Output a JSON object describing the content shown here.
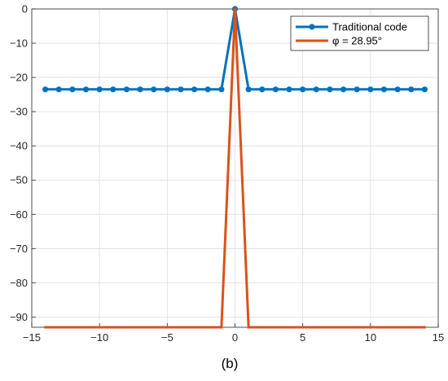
{
  "chart_data": {
    "type": "line",
    "caption": "(b)",
    "xlim": [
      -15,
      15
    ],
    "ylim": [
      -93,
      0
    ],
    "xticks": [
      -15,
      -10,
      -5,
      0,
      5,
      10,
      15
    ],
    "yticks": [
      0,
      -10,
      -20,
      -30,
      -40,
      -50,
      -60,
      -70,
      -80,
      -90
    ],
    "xtick_labels": [
      "−15",
      "−10",
      "−5",
      "0",
      "5",
      "10",
      "15"
    ],
    "ytick_labels": [
      "0",
      "−10",
      "−20",
      "−30",
      "−40",
      "−50",
      "−60",
      "−70",
      "−80",
      "−90"
    ],
    "grid": true,
    "legend_position": "top-right",
    "x": [
      -14,
      -13,
      -12,
      -11,
      -10,
      -9,
      -8,
      -7,
      -6,
      -5,
      -4,
      -3,
      -2,
      -1,
      0,
      1,
      2,
      3,
      4,
      5,
      6,
      7,
      8,
      9,
      10,
      11,
      12,
      13,
      14
    ],
    "series": [
      {
        "name": "Traditional code",
        "color": "#0072BD",
        "marker": "circle",
        "values": [
          -23.5,
          -23.5,
          -23.5,
          -23.5,
          -23.5,
          -23.5,
          -23.5,
          -23.5,
          -23.5,
          -23.5,
          -23.5,
          -23.5,
          -23.5,
          -23.5,
          0,
          -23.5,
          -23.5,
          -23.5,
          -23.5,
          -23.5,
          -23.5,
          -23.5,
          -23.5,
          -23.5,
          -23.5,
          -23.5,
          -23.5,
          -23.5,
          -23.5
        ]
      },
      {
        "name": "φ = 28.95°",
        "color": "#D95319",
        "marker": "point",
        "values": [
          -93,
          -93,
          -93,
          -93,
          -93,
          -93,
          -93,
          -93,
          -93,
          -93,
          -93,
          -93,
          -93,
          -93,
          0,
          -93,
          -93,
          -93,
          -93,
          -93,
          -93,
          -93,
          -93,
          -93,
          -93,
          -93,
          -93,
          -93,
          -93
        ]
      }
    ]
  }
}
